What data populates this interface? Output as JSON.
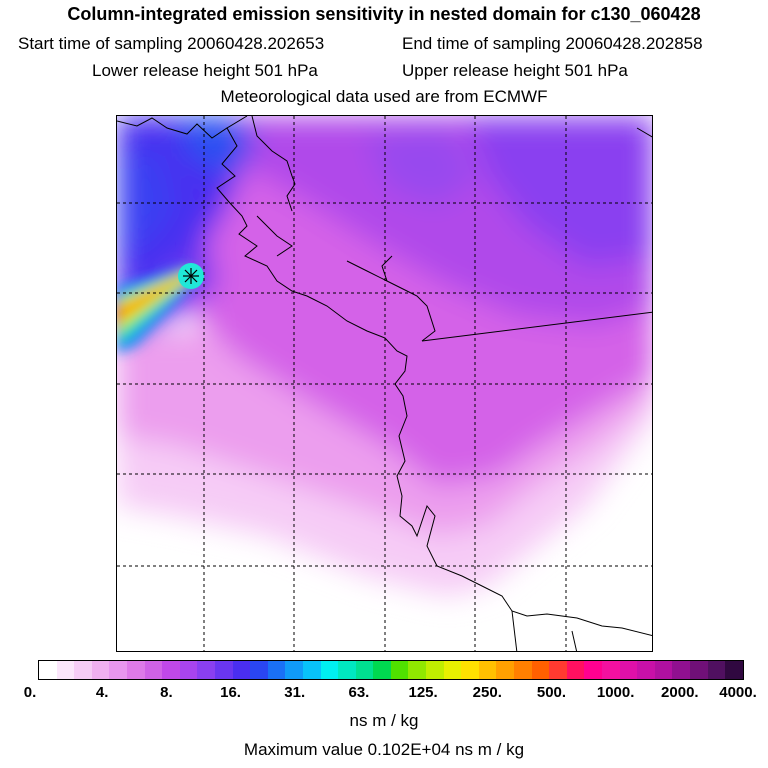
{
  "header": {
    "title": "Column-integrated emission sensitivity in nested domain for c130_060428",
    "start_time": "Start time of sampling 20060428.202653",
    "end_time": "End time of sampling 20060428.202858",
    "lower_release": "Lower release height  501 hPa",
    "upper_release": "Upper release height  501 hPa",
    "met_data": "Meteorological data used are from ECMWF"
  },
  "legend": {
    "ticks": [
      "0.",
      "4.",
      "8.",
      "16.",
      "31.",
      "63.",
      "125.",
      "250.",
      "500.",
      "1000.",
      "2000.",
      "4000."
    ],
    "colors": [
      "#ffffff",
      "#fbe6fb",
      "#f6ccf6",
      "#f0b0f0",
      "#e896ee",
      "#de7ae8",
      "#d062e6",
      "#c048e8",
      "#a844ee",
      "#8a3ff0",
      "#6a36f0",
      "#4a2ef0",
      "#2a46f2",
      "#1a70f6",
      "#109af8",
      "#08c2fa",
      "#00f0f0",
      "#00e8c0",
      "#00e090",
      "#00d850",
      "#50e000",
      "#90e800",
      "#c0ee00",
      "#e8f000",
      "#ffe000",
      "#ffc000",
      "#ffa000",
      "#ff8000",
      "#ff6000",
      "#ff3a30",
      "#ff1060",
      "#ff0090",
      "#f410a0",
      "#e010a8",
      "#c810a8",
      "#b010a0",
      "#901090",
      "#701078",
      "#501060",
      "#300840"
    ],
    "unit": "ns m / kg",
    "max_value": "Maximum value  0.102E+04 ns m / kg"
  }
}
